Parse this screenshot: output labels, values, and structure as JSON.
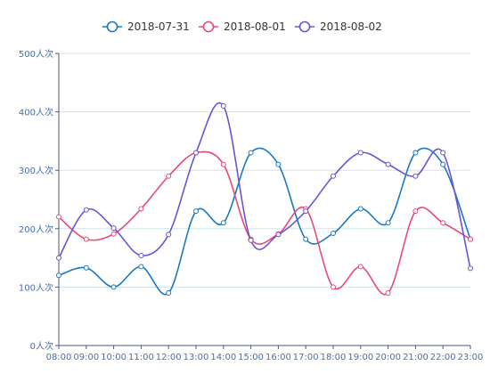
{
  "chart_data": {
    "type": "line",
    "smooth": true,
    "title": "",
    "xlabel": "",
    "ylabel": "",
    "categories": [
      "08:00",
      "09:00",
      "10:00",
      "11:00",
      "12:00",
      "13:00",
      "14:00",
      "15:00",
      "16:00",
      "17:00",
      "18:00",
      "19:00",
      "20:00",
      "21:00",
      "22:00",
      "23:00"
    ],
    "y_ticks": [
      "0人次",
      "100人次",
      "200人次",
      "300人次",
      "400人次",
      "500人次"
    ],
    "ylim": [
      0,
      500
    ],
    "grid": true,
    "legend_position": "top-center",
    "series": [
      {
        "name": "2018-07-31",
        "color": "#1a78c2",
        "values": [
          120,
          133,
          100,
          135,
          90,
          230,
          210,
          330,
          310,
          182,
          192,
          234,
          210,
          330,
          310,
          182
        ]
      },
      {
        "name": "2018-08-01",
        "color": "#e8497a",
        "values": [
          220,
          182,
          191,
          234,
          290,
          330,
          310,
          182,
          191,
          234,
          100,
          135,
          90,
          230,
          210,
          182
        ]
      },
      {
        "name": "2018-08-02",
        "color": "#6a55d0",
        "values": [
          150,
          232,
          201,
          154,
          190,
          330,
          410,
          180,
          190,
          230,
          290,
          330,
          310,
          290,
          330,
          132
        ]
      }
    ]
  }
}
